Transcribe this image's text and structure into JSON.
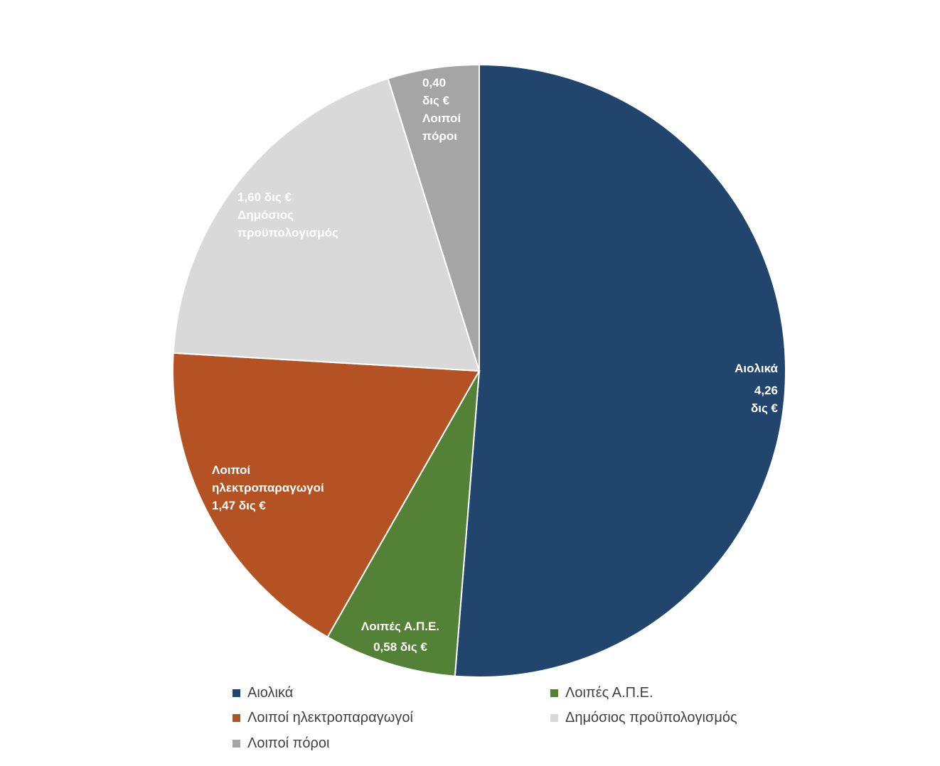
{
  "chart_data": {
    "type": "pie",
    "title": "",
    "unit": "δις €",
    "start_angle_deg": 0,
    "direction": "clockwise",
    "slices": [
      {
        "name": "Αιολικά",
        "value": 4.26,
        "color": "#22456E",
        "label_lines": [
          "Αιολικά",
          "4,26",
          "δις €"
        ]
      },
      {
        "name": "Λοιπές Α.Π.Ε.",
        "value": 0.58,
        "color": "#538135",
        "label_lines": [
          "Λοιπές Α.Π.Ε.",
          "0,58  δις €"
        ]
      },
      {
        "name": "Λοιποί ηλεκτροπαραγωγοί",
        "value": 1.47,
        "color": "#B45223",
        "label_lines": [
          "Λοιποί",
          "ηλεκτροπαραγωγοί",
          "1,47  δις €"
        ]
      },
      {
        "name": "Δημόσιος προϋπολογισμός",
        "value": 1.6,
        "color": "#D9D9D9",
        "label_lines": [
          "1,60  δις €",
          "Δημόσιος",
          "προϋπολογισμός"
        ]
      },
      {
        "name": "Λοιποί πόροι",
        "value": 0.4,
        "color": "#A5A5A5",
        "label_lines": [
          "0,40",
          "δις €",
          "Λοιποί",
          "πόροι"
        ]
      }
    ],
    "legend": {
      "position": "bottom",
      "items": [
        {
          "label": "Αιολικά",
          "color": "#22456E"
        },
        {
          "label": "Λοιπές Α.Π.Ε.",
          "color": "#538135"
        },
        {
          "label": "Λοιποί ηλεκτροπαραγωγοί",
          "color": "#B45223"
        },
        {
          "label": "Δημόσιος προϋπολογισμός",
          "color": "#D9D9D9"
        },
        {
          "label": "Λοιποί πόροι",
          "color": "#A5A5A5"
        }
      ]
    }
  }
}
